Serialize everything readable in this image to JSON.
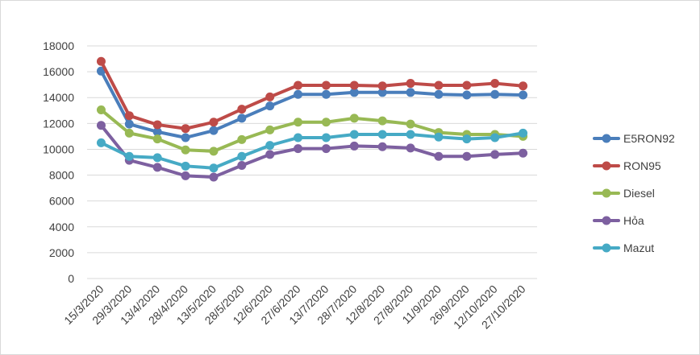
{
  "chart_data": {
    "type": "line",
    "title": "",
    "xlabel": "",
    "ylabel": "",
    "ylim": [
      0,
      18000
    ],
    "yticks": [
      0,
      2000,
      4000,
      6000,
      8000,
      10000,
      12000,
      14000,
      16000,
      18000
    ],
    "grid": "horizontal",
    "legend_position": "right",
    "categories": [
      "15/3/2020",
      "29/3/2020",
      "13/4/2020",
      "28/4/2020",
      "13/5/2020",
      "28/5/2020",
      "12/6/2020",
      "27/6/2020",
      "13/7/2020",
      "28/7/2020",
      "12/8/2020",
      "27/8/2020",
      "11/9/2020",
      "26/9/2020",
      "12/10/2020",
      "27/10/2020"
    ],
    "series": [
      {
        "name": "E5RON92",
        "color": "#4a7ebb",
        "values": [
          16050,
          11950,
          11350,
          10900,
          11450,
          12400,
          13350,
          14250,
          14250,
          14400,
          14400,
          14400,
          14250,
          14200,
          14250,
          14200
        ]
      },
      {
        "name": "RON95",
        "color": "#be4b48",
        "values": [
          16800,
          12600,
          11900,
          11600,
          12100,
          13100,
          14050,
          14950,
          14950,
          14950,
          14900,
          15100,
          14950,
          14950,
          15100,
          14900
        ]
      },
      {
        "name": "Diesel",
        "color": "#98b954",
        "values": [
          13050,
          11250,
          10800,
          9950,
          9850,
          10750,
          11500,
          12100,
          12100,
          12400,
          12200,
          11950,
          11300,
          11150,
          11150,
          11000
        ]
      },
      {
        "name": "Hỏa",
        "color": "#7d60a0",
        "values": [
          11850,
          9150,
          8600,
          7950,
          7850,
          8750,
          9600,
          10050,
          10050,
          10250,
          10200,
          10100,
          9450,
          9450,
          9600,
          9700
        ]
      },
      {
        "name": "Mazut",
        "color": "#46aac5",
        "values": [
          10500,
          9450,
          9350,
          8700,
          8550,
          9450,
          10300,
          10900,
          10900,
          11150,
          11150,
          11150,
          10950,
          10800,
          10900,
          11250
        ]
      }
    ]
  }
}
